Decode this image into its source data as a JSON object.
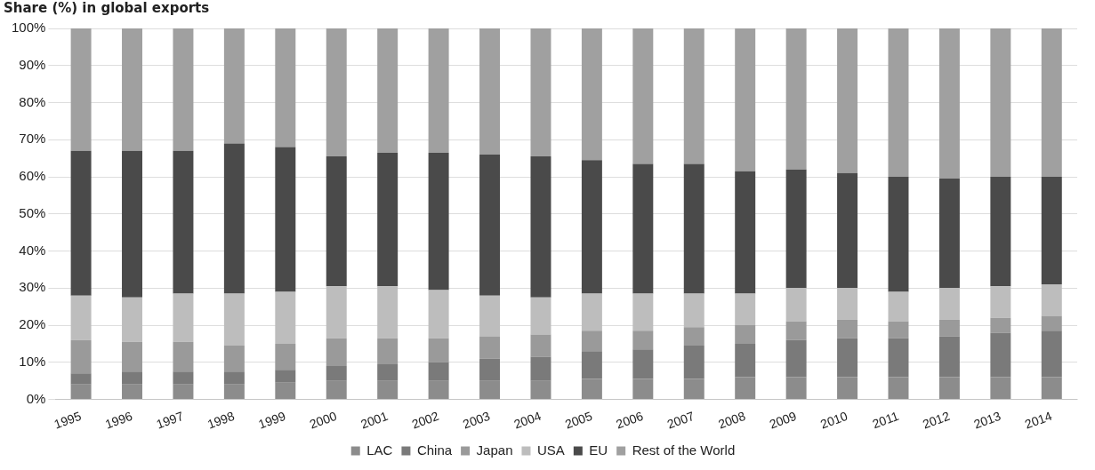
{
  "chart_data": {
    "type": "bar",
    "title": "Share (%) in global exports",
    "stacked": true,
    "grid": "y",
    "legend": "bottom",
    "categories": [
      "1995",
      "1996",
      "1997",
      "1998",
      "1999",
      "2000",
      "2001",
      "2002",
      "2003",
      "2004",
      "2005",
      "2006",
      "2007",
      "2008",
      "2009",
      "2010",
      "2011",
      "2012",
      "2013",
      "2014"
    ],
    "ylim": [
      0,
      100
    ],
    "yticks": [
      {
        "value": 0,
        "label": "0%"
      },
      {
        "value": 10,
        "label": "10%"
      },
      {
        "value": 20,
        "label": "20%"
      },
      {
        "value": 30,
        "label": "30%"
      },
      {
        "value": 40,
        "label": "40%"
      },
      {
        "value": 50,
        "label": "50%"
      },
      {
        "value": 60,
        "label": "60%"
      },
      {
        "value": 70,
        "label": "70%"
      },
      {
        "value": 80,
        "label": "80%"
      },
      {
        "value": 90,
        "label": "90%"
      },
      {
        "value": 100,
        "label": "100%"
      }
    ],
    "series": [
      {
        "name": "LAC",
        "color": "#8c8c8c",
        "values": [
          4,
          4,
          4,
          4,
          4.5,
          5,
          5,
          5,
          5,
          5,
          5.5,
          5.5,
          5.5,
          6,
          6,
          6,
          6,
          6,
          6,
          6
        ]
      },
      {
        "name": "China",
        "color": "#7a7a7a",
        "values": [
          3,
          3.5,
          3.5,
          3.5,
          3.5,
          4,
          4.5,
          5,
          6,
          6.5,
          7.5,
          8,
          9,
          9,
          10,
          10.5,
          10.5,
          11,
          12,
          12.5
        ]
      },
      {
        "name": "Japan",
        "color": "#9a9a9a",
        "values": [
          9,
          8,
          8,
          7,
          7,
          7.5,
          7,
          6.5,
          6,
          6,
          5.5,
          5,
          5,
          5,
          5,
          5,
          4.5,
          4.5,
          4,
          4
        ]
      },
      {
        "name": "USA",
        "color": "#bdbdbd",
        "values": [
          12,
          12,
          13,
          14,
          14,
          14,
          14,
          13,
          11,
          10,
          10,
          10,
          9,
          8.5,
          9,
          8.5,
          8,
          8.5,
          8.5,
          8.5
        ]
      },
      {
        "name": "EU",
        "color": "#4a4a4a",
        "values": [
          39,
          39.5,
          38.5,
          40.5,
          39,
          35,
          36,
          37,
          38,
          38,
          36,
          35,
          35,
          33,
          32,
          31,
          31,
          29.5,
          29.5,
          29
        ]
      },
      {
        "name": "Rest of the World",
        "color": "#a0a0a0",
        "values": [
          33,
          33,
          33,
          31,
          32,
          34.5,
          33.5,
          33.5,
          34,
          34.5,
          35.5,
          36.5,
          36.5,
          38.5,
          38,
          39,
          40,
          40.5,
          40,
          40
        ]
      }
    ]
  }
}
